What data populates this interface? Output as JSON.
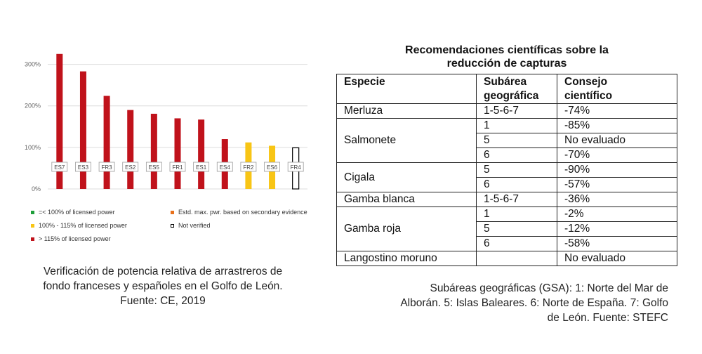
{
  "chart_data": {
    "type": "bar",
    "title": "",
    "xlabel": "",
    "ylabel": "",
    "ylim": [
      0,
      350
    ],
    "y_ticks": [
      0,
      100,
      200,
      300
    ],
    "y_tick_labels": [
      "0%",
      "100%",
      "200%",
      "300%"
    ],
    "gridlines": true,
    "categories": [
      "ES7",
      "ES3",
      "FR3",
      "ES2",
      "ES5",
      "FR1",
      "ES1",
      "ES4",
      "FR2",
      "ES6",
      "FR4"
    ],
    "values": [
      325,
      283,
      224,
      190,
      181,
      170,
      167,
      120,
      112,
      104,
      99
    ],
    "bar_status": [
      "over115",
      "over115",
      "over115",
      "over115",
      "over115",
      "over115",
      "over115",
      "over115",
      "100to115",
      "100to115",
      "not_verified"
    ],
    "colors": {
      "under100": "#1e9e3a",
      "100to115": "#f8c515",
      "over115": "#c0121b",
      "estimated": "#e8711c",
      "not_verified": "#ffffff",
      "grid": "#dcdcdc",
      "tick_text": "#666666"
    },
    "legend": [
      {
        "key": "under100",
        "label": "=< 100% of licensed power"
      },
      {
        "key": "estimated",
        "label": "Estd. max. pwr. based on secondary evidence"
      },
      {
        "key": "100to115",
        "label": "100% - 115% of licensed power"
      },
      {
        "key": "not_verified",
        "label": "Not verified"
      },
      {
        "key": "over115",
        "label": "> 115% of licensed power"
      }
    ]
  },
  "left_caption": {
    "line1": "Verificación de potencia relativa de arrastreros de",
    "line2": "fondo franceses y españoles en el Golfo de León.",
    "line3": "Fuente: CE, 2019"
  },
  "table": {
    "title_line1": "Recomendaciones científicas sobre la",
    "title_line2": "reducción de capturas",
    "headers": {
      "species": "Especie",
      "gsa_line1": "Subárea",
      "gsa_line2": "geográfica",
      "advice_line1": "Consejo",
      "advice_line2": "científico"
    },
    "rows": [
      {
        "species": "Merluza",
        "entries": [
          {
            "gsa": "1-5-6-7",
            "advice": "-74%"
          }
        ]
      },
      {
        "species": "Salmonete",
        "entries": [
          {
            "gsa": "1",
            "advice": "-85%"
          },
          {
            "gsa": "5",
            "advice": "No evaluado"
          },
          {
            "gsa": "6",
            "advice": "-70%"
          }
        ]
      },
      {
        "species": "Cigala",
        "entries": [
          {
            "gsa": "5",
            "advice": "-90%"
          },
          {
            "gsa": "6",
            "advice": "-57%"
          }
        ]
      },
      {
        "species": "Gamba blanca",
        "entries": [
          {
            "gsa": "1-5-6-7",
            "advice": "-36%"
          }
        ]
      },
      {
        "species": "Gamba roja",
        "entries": [
          {
            "gsa": "1",
            "advice": "-2%"
          },
          {
            "gsa": "5",
            "advice": "-12%"
          },
          {
            "gsa": "6",
            "advice": "-58%"
          }
        ]
      },
      {
        "species": "Langostino moruno",
        "entries": [
          {
            "gsa": "",
            "advice": "No evaluado"
          }
        ]
      }
    ],
    "caption_line1": "Subáreas geográficas (GSA): 1: Norte del Mar de",
    "caption_line2": "Alborán. 5: Islas Baleares. 6: Norte de España. 7: Golfo",
    "caption_line3": "de León. Fuente: STEFC"
  }
}
